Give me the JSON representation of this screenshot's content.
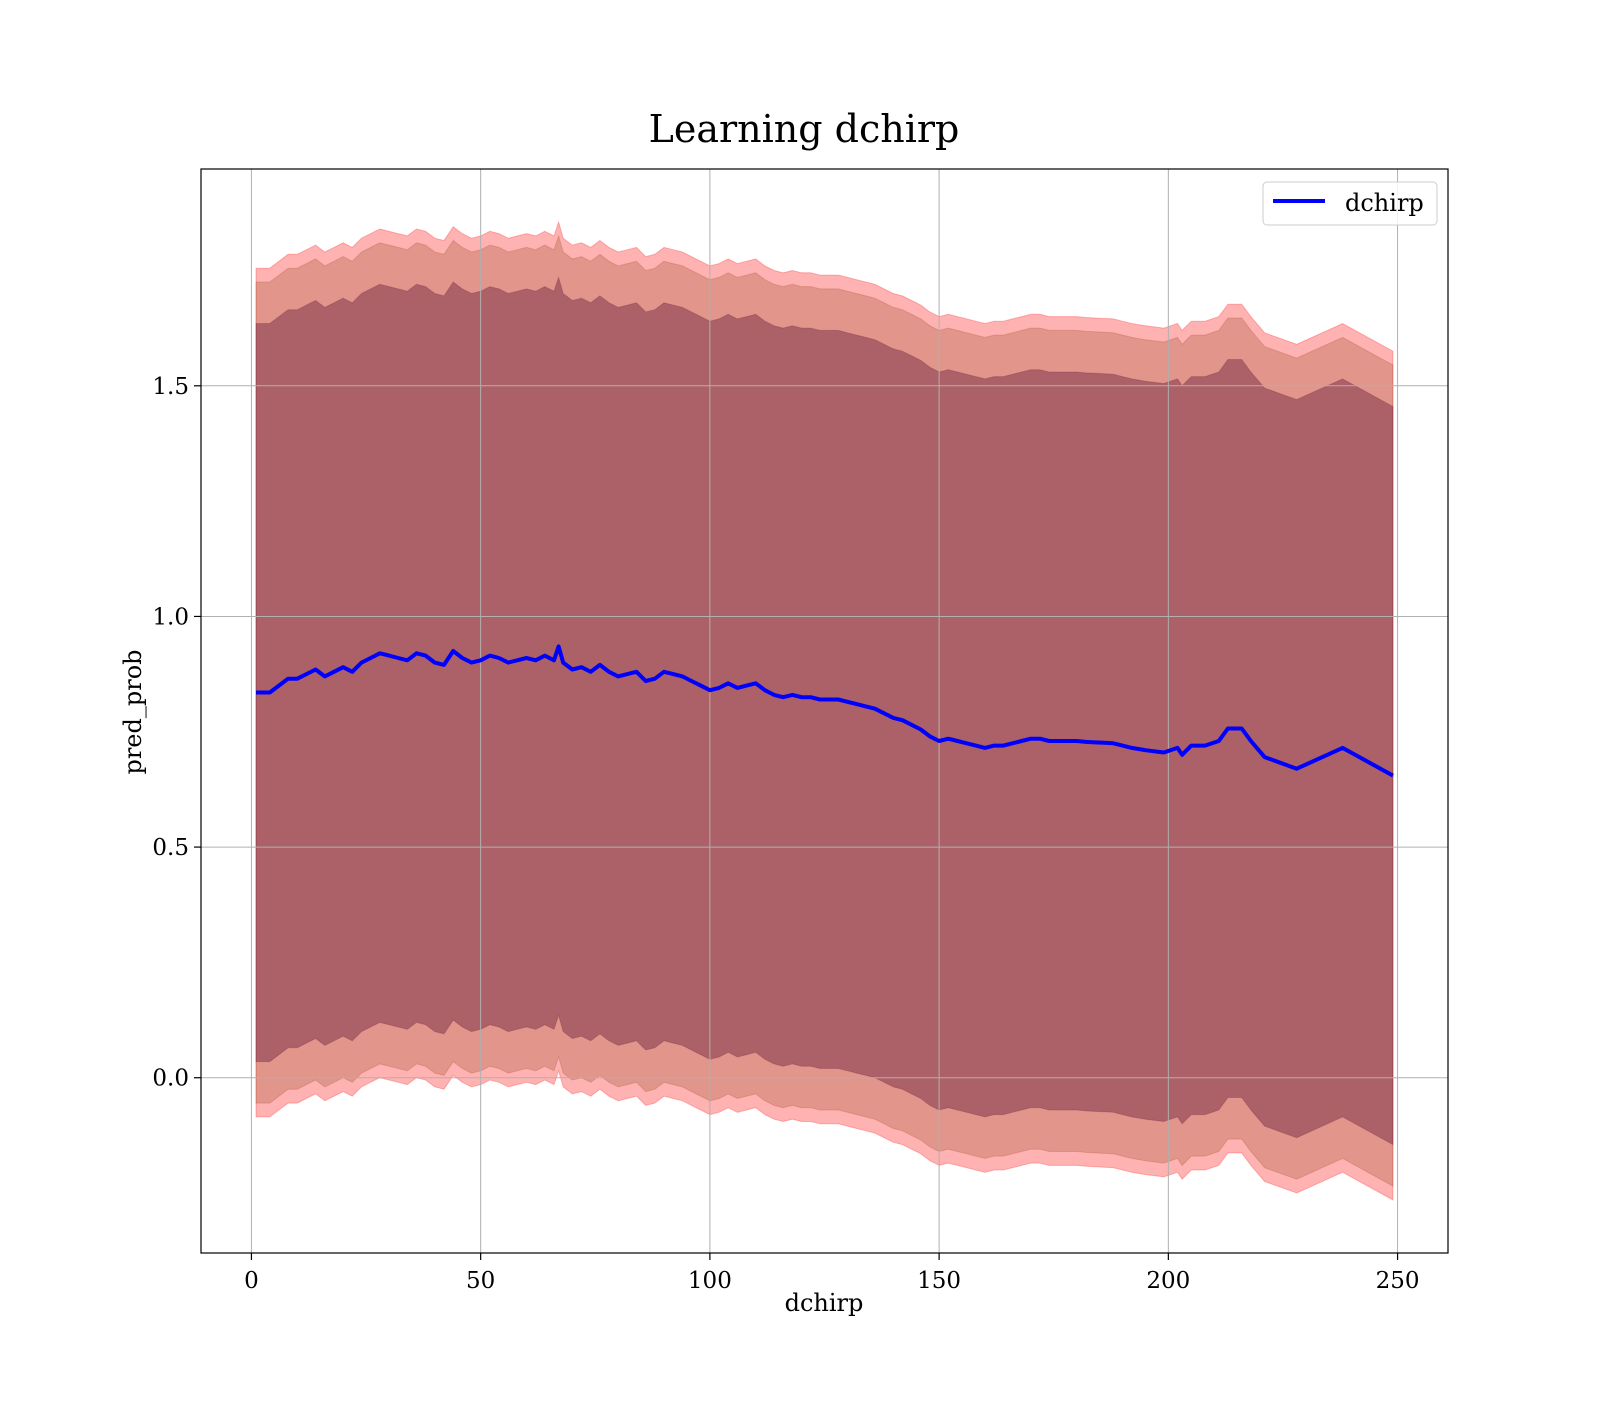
{
  "chart_data": {
    "type": "line",
    "title": "Learning dchirp",
    "xlabel": "dchirp",
    "ylabel": "pred_prob",
    "xlim": [
      -11,
      261
    ],
    "ylim": [
      -0.38,
      1.97
    ],
    "x_ticks": [
      0,
      50,
      100,
      150,
      200,
      250
    ],
    "x_tick_labels": [
      "0",
      "50",
      "100",
      "150",
      "200",
      "250"
    ],
    "y_ticks": [
      0.0,
      0.5,
      1.0,
      1.5
    ],
    "y_tick_labels": [
      "0.0",
      "0.5",
      "1.0",
      "1.5"
    ],
    "grid": true,
    "legend_position": "top-right",
    "colors": {
      "line": "#0000ff",
      "band_outer": "#ff0000",
      "band_middle": "#a0522d",
      "band_inner": "#6b1f3b",
      "grid": "#b0b0b0"
    },
    "band_half_widths": [
      0.8,
      0.89,
      0.92
    ],
    "series": [
      {
        "name": "dchirp",
        "x": [
          1,
          4,
          6,
          8,
          10,
          12,
          14,
          16,
          18,
          20,
          22,
          24,
          26,
          28,
          30,
          32,
          34,
          36,
          38,
          40,
          42,
          44,
          46,
          48,
          50,
          52,
          54,
          56,
          58,
          60,
          62,
          64,
          66,
          67,
          68,
          70,
          72,
          74,
          76,
          78,
          80,
          82,
          84,
          86,
          88,
          90,
          92,
          94,
          96,
          98,
          100,
          102,
          104,
          106,
          108,
          110,
          112,
          114,
          116,
          118,
          120,
          122,
          124,
          126,
          128,
          130,
          132,
          134,
          136,
          138,
          140,
          142,
          144,
          146,
          148,
          150,
          152,
          154,
          156,
          158,
          160,
          162,
          164,
          166,
          168,
          170,
          172,
          174,
          176,
          178,
          180,
          182,
          184,
          186,
          188,
          190,
          192,
          195,
          199,
          202,
          203,
          205,
          208,
          211,
          213,
          214,
          216,
          218,
          221,
          228,
          238,
          249
        ],
        "y": [
          0.835,
          0.835,
          0.85,
          0.865,
          0.865,
          0.875,
          0.885,
          0.87,
          0.88,
          0.89,
          0.88,
          0.9,
          0.91,
          0.92,
          0.915,
          0.91,
          0.905,
          0.92,
          0.915,
          0.9,
          0.895,
          0.925,
          0.91,
          0.9,
          0.905,
          0.915,
          0.91,
          0.9,
          0.905,
          0.91,
          0.905,
          0.915,
          0.905,
          0.935,
          0.9,
          0.885,
          0.89,
          0.88,
          0.895,
          0.88,
          0.87,
          0.875,
          0.88,
          0.86,
          0.865,
          0.88,
          0.875,
          0.87,
          0.86,
          0.85,
          0.84,
          0.845,
          0.855,
          0.845,
          0.85,
          0.855,
          0.84,
          0.83,
          0.825,
          0.83,
          0.825,
          0.825,
          0.82,
          0.82,
          0.82,
          0.815,
          0.81,
          0.805,
          0.8,
          0.79,
          0.78,
          0.775,
          0.765,
          0.755,
          0.74,
          0.73,
          0.735,
          0.73,
          0.725,
          0.72,
          0.715,
          0.72,
          0.72,
          0.725,
          0.73,
          0.735,
          0.735,
          0.73,
          0.73,
          0.73,
          0.73,
          0.728,
          0.727,
          0.726,
          0.725,
          0.72,
          0.715,
          0.71,
          0.705,
          0.715,
          0.7,
          0.72,
          0.72,
          0.73,
          0.757,
          0.757,
          0.757,
          0.73,
          0.695,
          0.67,
          0.715,
          0.655
        ]
      }
    ]
  }
}
